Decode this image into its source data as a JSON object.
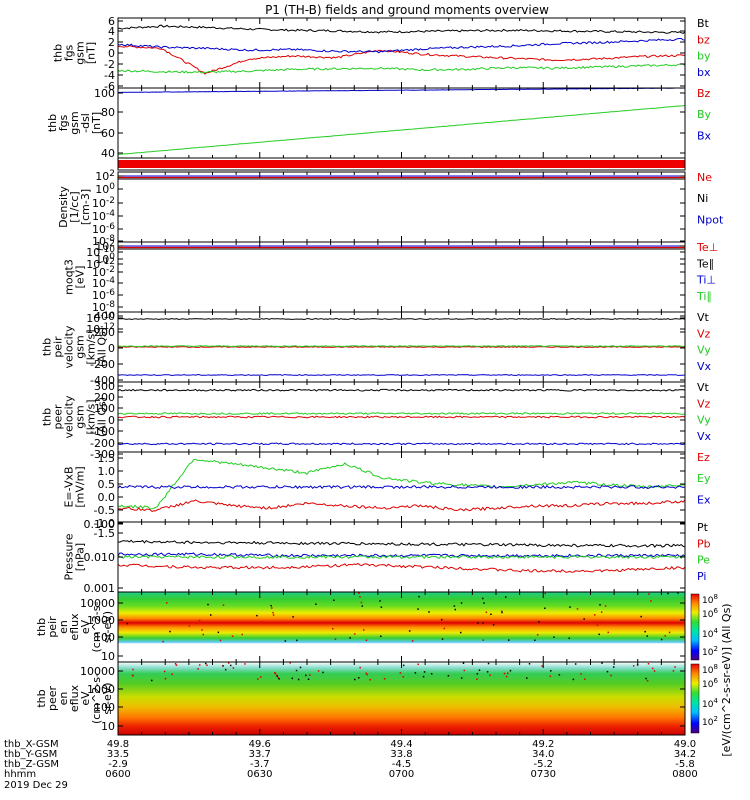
{
  "title": "P1 (TH-B) fields and ground moments overview",
  "colors": {
    "black": "#000000",
    "red": "#dd0000",
    "green": "#22cc22",
    "blue": "#0000cc"
  },
  "chart_data": [
    {
      "type": "line",
      "panel": "fgs",
      "ylabel": [
        "thb",
        "fgs",
        "gsm",
        "[nT]"
      ],
      "yticks": [
        "6",
        "4",
        "2",
        "0",
        "-2",
        "-4",
        "-6"
      ],
      "ylim": [
        -6,
        6
      ],
      "legend": [
        {
          "label": "Bt",
          "color": "#000000"
        },
        {
          "label": "bz",
          "color": "#dd0000"
        },
        {
          "label": "by",
          "color": "#22cc22"
        },
        {
          "label": "bx",
          "color": "#0000cc"
        }
      ],
      "series": [
        {
          "name": "Bt",
          "color": "#000000",
          "values": [
            4.2,
            4.6,
            4.4,
            4.1,
            3.9,
            3.8,
            3.6,
            3.7,
            3.8,
            3.9,
            3.8,
            3.7,
            3.6,
            3.5
          ]
        },
        {
          "name": "bz",
          "color": "#dd0000",
          "values": [
            1.2,
            0.8,
            -3.5,
            -1.0,
            -0.5,
            -0.8,
            0.5,
            -0.2,
            -0.6,
            -0.9,
            -1.2,
            -1.0,
            -0.6,
            -0.4
          ]
        },
        {
          "name": "by",
          "color": "#22cc22",
          "values": [
            -3.0,
            -3.2,
            -3.3,
            -3.1,
            -2.8,
            -2.7,
            -2.6,
            -2.9,
            -2.8,
            -2.5,
            -2.6,
            -2.4,
            -2.2,
            -2.0
          ]
        },
        {
          "name": "bx",
          "color": "#0000cc",
          "values": [
            1.5,
            1.0,
            0.8,
            0.5,
            0.6,
            0.3,
            0.2,
            0.7,
            1.0,
            1.2,
            1.6,
            1.8,
            2.1,
            2.4
          ]
        }
      ]
    },
    {
      "type": "line",
      "panel": "fgs-dsl",
      "ylabel": [
        "thb",
        "fgs",
        "gsm",
        "-dsl",
        "[nT]"
      ],
      "yticks": [
        "100",
        "80",
        "60",
        "40"
      ],
      "ylim": [
        20,
        100
      ],
      "legend": [
        {
          "label": "Bz",
          "color": "#dd0000"
        },
        {
          "label": "By",
          "color": "#22cc22"
        },
        {
          "label": "Bx",
          "color": "#0000cc"
        }
      ],
      "series": [
        {
          "name": "By",
          "color": "#22cc22",
          "values": [
            24,
            80
          ]
        },
        {
          "name": "Bx",
          "color": "#0000cc",
          "values": [
            95,
            100
          ]
        }
      ]
    },
    {
      "type": "line",
      "panel": "density",
      "ylabel": [
        "Density",
        "[1/cc]",
        "[cm-3]"
      ],
      "yticks": [
        "10^2",
        "10^0",
        "10^-2",
        "10^-4",
        "10^-6",
        "10^-8",
        "10^-10",
        "10^-12"
      ],
      "legend": [
        {
          "label": "Ne",
          "color": "#dd0000"
        },
        {
          "label": "Ni",
          "color": "#000000"
        },
        {
          "label": "Npot",
          "color": "#0000cc"
        }
      ]
    },
    {
      "type": "line",
      "panel": "temperature",
      "ylabel": [
        "moqt3",
        "[eV]"
      ],
      "yticks": [
        "10^2",
        "10^0",
        "10^-2",
        "10^-4",
        "10^-6",
        "10^-8",
        "10^-10",
        "10^-12"
      ],
      "legend": [
        {
          "label": "Te⊥",
          "color": "#dd0000"
        },
        {
          "label": "Te∥",
          "color": "#000000"
        },
        {
          "label": "Ti⊥",
          "color": "#0000cc"
        },
        {
          "label": "Ti∥",
          "color": "#22cc22"
        }
      ]
    },
    {
      "type": "line",
      "panel": "peir-velocity",
      "ylabel": [
        "thb",
        "peir",
        "velocity",
        "gsm",
        "[km/s]",
        "(All Qs)"
      ],
      "yticks": [
        "400",
        "200",
        "0",
        "-200",
        "-400"
      ],
      "ylim": [
        -400,
        400
      ],
      "legend": [
        {
          "label": "Vt",
          "color": "#000000"
        },
        {
          "label": "Vz",
          "color": "#dd0000"
        },
        {
          "label": "Vy",
          "color": "#22cc22"
        },
        {
          "label": "Vx",
          "color": "#0000cc"
        }
      ],
      "series": [
        {
          "name": "Vt",
          "color": "#000000",
          "values": [
            320,
            320
          ]
        },
        {
          "name": "Vz",
          "color": "#dd0000",
          "values": [
            0,
            0
          ]
        },
        {
          "name": "Vy",
          "color": "#22cc22",
          "values": [
            10,
            10
          ]
        },
        {
          "name": "Vx",
          "color": "#0000cc",
          "values": [
            -320,
            -320
          ]
        }
      ]
    },
    {
      "type": "line",
      "panel": "peer-velocity",
      "ylabel": [
        "thb",
        "peer",
        "velocity",
        "gsm",
        "[km/s]",
        "(All Qs)"
      ],
      "yticks": [
        "300",
        "200",
        "100",
        "0",
        "-100",
        "-200",
        "-300"
      ],
      "ylim": [
        -300,
        300
      ],
      "legend": [
        {
          "label": "Vt",
          "color": "#000000"
        },
        {
          "label": "Vz",
          "color": "#dd0000"
        },
        {
          "label": "Vy",
          "color": "#22cc22"
        },
        {
          "label": "Vx",
          "color": "#0000cc"
        }
      ],
      "series": [
        {
          "name": "Vt",
          "color": "#000000",
          "values": [
            230,
            230
          ]
        },
        {
          "name": "Vz",
          "color": "#dd0000",
          "values": [
            0,
            0
          ]
        },
        {
          "name": "Vy",
          "color": "#22cc22",
          "values": [
            30,
            30
          ]
        },
        {
          "name": "Vx",
          "color": "#0000cc",
          "values": [
            -230,
            -230
          ]
        }
      ]
    },
    {
      "type": "line",
      "panel": "efield",
      "ylabel": [
        "E=-VxB",
        "[mV/m]"
      ],
      "yticks": [
        "1.5",
        "1.0",
        "0.5",
        "0.0",
        "-0.5",
        "-1.0",
        "-1.5"
      ],
      "ylim": [
        -1.5,
        1.5
      ],
      "legend": [
        {
          "label": "Ez",
          "color": "#dd0000"
        },
        {
          "label": "Ey",
          "color": "#22cc22"
        },
        {
          "label": "Ex",
          "color": "#0000cc"
        }
      ],
      "series": [
        {
          "name": "Ey",
          "color": "#22cc22",
          "values": [
            -0.8,
            -0.9,
            1.2,
            1.0,
            0.8,
            0.6,
            1.0,
            0.4,
            0.2,
            0.1,
            0.0,
            0.1,
            0.2,
            0.1,
            0.0,
            0.1
          ]
        },
        {
          "name": "Ez",
          "color": "#dd0000",
          "values": [
            -0.9,
            -1.0,
            -0.6,
            -0.8,
            -0.9,
            -0.7,
            -0.8,
            -0.9,
            -0.8,
            -1.0,
            -0.9,
            -0.8,
            -0.8,
            -0.7,
            -0.7,
            -0.6
          ]
        },
        {
          "name": "Ex",
          "color": "#0000cc",
          "values": [
            0.0,
            0.0
          ]
        }
      ]
    },
    {
      "type": "line",
      "panel": "pressure",
      "ylabel": [
        "Pressure",
        "[nPa]"
      ],
      "yticks": [
        "0.100",
        "0.010",
        "0.001"
      ],
      "ylim": [
        0.001,
        0.1
      ],
      "yscale": "log",
      "legend": [
        {
          "label": "Pt",
          "color": "#000000"
        },
        {
          "label": "Pb",
          "color": "#dd0000"
        },
        {
          "label": "Pe",
          "color": "#22cc22"
        },
        {
          "label": "Pi",
          "color": "#0000cc"
        }
      ],
      "series": [
        {
          "name": "Pt",
          "color": "#000000",
          "values": [
            0.028,
            0.026,
            0.025,
            0.024,
            0.023,
            0.022,
            0.021,
            0.021
          ]
        },
        {
          "name": "Pi",
          "color": "#0000cc",
          "values": [
            0.012,
            0.012,
            0.011,
            0.011,
            0.011,
            0.011,
            0.011,
            0.011
          ]
        },
        {
          "name": "Pe",
          "color": "#22cc22",
          "values": [
            0.01,
            0.01,
            0.01,
            0.01,
            0.01,
            0.01,
            0.01,
            0.01
          ]
        },
        {
          "name": "Pb",
          "color": "#dd0000",
          "values": [
            0.006,
            0.005,
            0.005,
            0.006,
            0.005,
            0.004,
            0.004,
            0.005
          ]
        }
      ]
    },
    {
      "type": "heatmap",
      "panel": "peir-spectrogram",
      "ylabel": [
        "thb",
        "peir",
        "en",
        "eflux",
        "eV",
        "(cm^2-s-",
        "sr-eV)"
      ],
      "yticks": [
        "10000",
        "1000",
        "100",
        "10"
      ],
      "colorbar_label": "[eV/(cm^2-s-sr-eV)] (All Qs)",
      "colorbar_ticks": [
        "10^8",
        "10^6",
        "10^4",
        "10^2"
      ]
    },
    {
      "type": "heatmap",
      "panel": "peer-spectrogram",
      "ylabel": [
        "thb",
        "peer",
        "en",
        "eflux",
        "eV",
        "(cm^2-s-",
        "sr-eV)"
      ],
      "yticks": [
        "10000",
        "1000",
        "100",
        "10"
      ],
      "colorbar_label": "[eV/(cm^2-s-sr-eV)] (All Qs)",
      "colorbar_ticks": [
        "10^8",
        "10^6",
        "10^4",
        "10^2"
      ]
    }
  ],
  "xaxis": {
    "row_labels": [
      "thb_X-GSM",
      "thb_Y-GSM",
      "thb_Z-GSM",
      "hhmm",
      "2019 Dec 29"
    ],
    "columns": [
      {
        "x": "49.8",
        "y": "33.5",
        "z": "-2.9",
        "t": "0600"
      },
      {
        "x": "49.6",
        "y": "33.7",
        "z": "-3.7",
        "t": "0630"
      },
      {
        "x": "49.4",
        "y": "33.8",
        "z": "-4.5",
        "t": "0700"
      },
      {
        "x": "49.2",
        "y": "34.0",
        "z": "-5.2",
        "t": "0730"
      },
      {
        "x": "49.0",
        "y": "34.2",
        "z": "-5.8",
        "t": "0800"
      }
    ]
  }
}
